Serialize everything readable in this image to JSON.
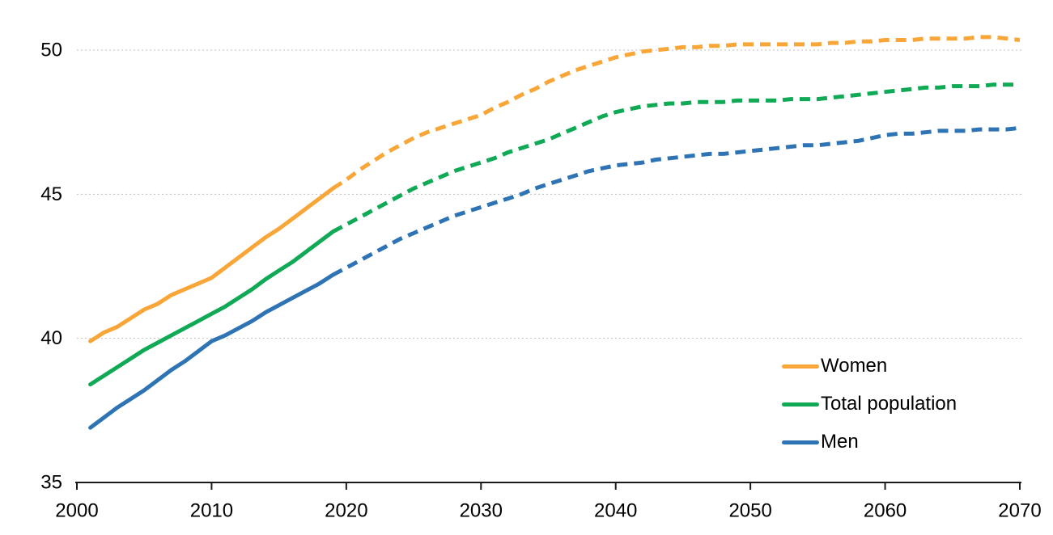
{
  "chart_data": {
    "type": "line",
    "title": "",
    "xlabel": "",
    "ylabel": "",
    "xlim": [
      2000,
      2070
    ],
    "ylim": [
      35,
      51
    ],
    "x_ticks": [
      2000,
      2010,
      2020,
      2030,
      2040,
      2050,
      2060,
      2070
    ],
    "y_ticks": [
      35,
      40,
      45,
      50
    ],
    "grid": "horizontal dotted gridlines at 40, 45, 50",
    "legend_position": "bottom-right inside plot",
    "line_style_note": "solid 2001-2019 (observed), dashed 2019-2070 (projection)",
    "solid_until_year": 2019,
    "years": [
      2001,
      2002,
      2003,
      2004,
      2005,
      2006,
      2007,
      2008,
      2009,
      2010,
      2011,
      2012,
      2013,
      2014,
      2015,
      2016,
      2017,
      2018,
      2019,
      2020,
      2021,
      2022,
      2023,
      2024,
      2025,
      2026,
      2027,
      2028,
      2029,
      2030,
      2031,
      2032,
      2033,
      2034,
      2035,
      2036,
      2037,
      2038,
      2039,
      2040,
      2041,
      2042,
      2043,
      2044,
      2045,
      2046,
      2047,
      2048,
      2049,
      2050,
      2051,
      2052,
      2053,
      2054,
      2055,
      2056,
      2057,
      2058,
      2059,
      2060,
      2061,
      2062,
      2063,
      2064,
      2065,
      2066,
      2067,
      2068,
      2069,
      2070
    ],
    "series": [
      {
        "name": "Women",
        "color": "#F8A637",
        "values": [
          39.9,
          40.2,
          40.4,
          40.7,
          41.0,
          41.2,
          41.5,
          41.7,
          41.9,
          42.1,
          42.45,
          42.8,
          43.15,
          43.5,
          43.8,
          44.15,
          44.5,
          44.85,
          45.2,
          45.5,
          45.85,
          46.15,
          46.45,
          46.7,
          46.95,
          47.15,
          47.3,
          47.45,
          47.6,
          47.75,
          48.0,
          48.2,
          48.45,
          48.65,
          48.9,
          49.1,
          49.3,
          49.45,
          49.6,
          49.75,
          49.85,
          49.95,
          50.0,
          50.05,
          50.1,
          50.1,
          50.15,
          50.15,
          50.2,
          50.2,
          50.2,
          50.2,
          50.2,
          50.2,
          50.2,
          50.25,
          50.25,
          50.3,
          50.3,
          50.35,
          50.35,
          50.35,
          50.4,
          50.4,
          50.4,
          50.4,
          50.45,
          50.45,
          50.4,
          50.35
        ]
      },
      {
        "name": "Total population",
        "color": "#10A956",
        "values": [
          38.4,
          38.7,
          39.0,
          39.3,
          39.6,
          39.85,
          40.1,
          40.35,
          40.6,
          40.85,
          41.1,
          41.4,
          41.7,
          42.05,
          42.35,
          42.65,
          43.0,
          43.35,
          43.7,
          43.95,
          44.2,
          44.45,
          44.7,
          44.95,
          45.2,
          45.4,
          45.6,
          45.8,
          45.95,
          46.1,
          46.25,
          46.45,
          46.6,
          46.75,
          46.9,
          47.1,
          47.3,
          47.5,
          47.7,
          47.85,
          47.95,
          48.05,
          48.1,
          48.15,
          48.15,
          48.2,
          48.2,
          48.2,
          48.25,
          48.25,
          48.25,
          48.25,
          48.3,
          48.3,
          48.3,
          48.35,
          48.4,
          48.45,
          48.5,
          48.55,
          48.6,
          48.65,
          48.7,
          48.7,
          48.75,
          48.75,
          48.75,
          48.8,
          48.8,
          48.8
        ]
      },
      {
        "name": "Men",
        "color": "#2E74B5",
        "values": [
          36.9,
          37.25,
          37.6,
          37.9,
          38.2,
          38.55,
          38.9,
          39.2,
          39.55,
          39.9,
          40.1,
          40.35,
          40.6,
          40.9,
          41.15,
          41.4,
          41.65,
          41.9,
          42.2,
          42.45,
          42.7,
          42.95,
          43.2,
          43.45,
          43.65,
          43.85,
          44.05,
          44.25,
          44.4,
          44.55,
          44.7,
          44.85,
          45.0,
          45.2,
          45.35,
          45.5,
          45.65,
          45.8,
          45.9,
          46.0,
          46.05,
          46.1,
          46.2,
          46.25,
          46.3,
          46.35,
          46.4,
          46.4,
          46.45,
          46.5,
          46.55,
          46.6,
          46.65,
          46.7,
          46.7,
          46.75,
          46.8,
          46.85,
          46.95,
          47.05,
          47.1,
          47.1,
          47.15,
          47.2,
          47.2,
          47.2,
          47.25,
          47.25,
          47.25,
          47.3
        ]
      }
    ]
  },
  "colors": {
    "background": "#FFFFFF",
    "gridline": "#BFBFBF",
    "axis": "#1A1A1A",
    "tick_text": "#000000"
  }
}
